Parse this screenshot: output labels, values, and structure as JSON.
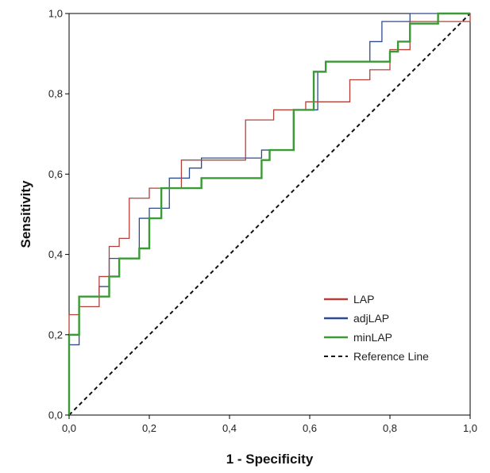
{
  "chart_data": {
    "type": "line",
    "title": "",
    "xlabel": "1 - Specificity",
    "ylabel": "Sensitivity",
    "xlim": [
      0,
      1
    ],
    "ylim": [
      0,
      1
    ],
    "xticks": [
      "0,0",
      "0,2",
      "0,4",
      "0,6",
      "0,8",
      "1,0"
    ],
    "yticks": [
      "0,0",
      "0,2",
      "0,4",
      "0,6",
      "0,8",
      "1,0"
    ],
    "grid": false,
    "legend_position": "bottom-right",
    "series": [
      {
        "name": "LAP",
        "color": "#b5403a",
        "step": true,
        "x": [
          0,
          0,
          0.025,
          0.025,
          0.075,
          0.075,
          0.1,
          0.1,
          0.125,
          0.125,
          0.15,
          0.15,
          0.2,
          0.2,
          0.28,
          0.28,
          0.44,
          0.44,
          0.51,
          0.51,
          0.59,
          0.59,
          0.7,
          0.7,
          0.75,
          0.75,
          0.8,
          0.8,
          0.85,
          0.85,
          1.0,
          1.0
        ],
        "y": [
          0,
          0.25,
          0.25,
          0.27,
          0.27,
          0.345,
          0.345,
          0.42,
          0.42,
          0.44,
          0.44,
          0.54,
          0.54,
          0.565,
          0.565,
          0.635,
          0.635,
          0.735,
          0.735,
          0.76,
          0.76,
          0.78,
          0.78,
          0.835,
          0.835,
          0.86,
          0.86,
          0.91,
          0.91,
          0.98,
          0.98,
          1.0
        ]
      },
      {
        "name": "adjLAP",
        "color": "#2e4a8f",
        "step": true,
        "x": [
          0,
          0,
          0.025,
          0.025,
          0.075,
          0.075,
          0.1,
          0.1,
          0.175,
          0.175,
          0.2,
          0.2,
          0.25,
          0.25,
          0.3,
          0.3,
          0.33,
          0.33,
          0.46,
          0.46,
          0.48,
          0.48,
          0.5,
          0.5,
          0.56,
          0.56,
          0.62,
          0.62,
          0.64,
          0.64,
          0.75,
          0.75,
          0.78,
          0.78,
          0.85,
          0.85,
          1.0
        ],
        "y": [
          0,
          0.175,
          0.175,
          0.295,
          0.295,
          0.32,
          0.32,
          0.39,
          0.39,
          0.49,
          0.49,
          0.515,
          0.515,
          0.59,
          0.59,
          0.615,
          0.615,
          0.64,
          0.64,
          0.64,
          0.64,
          0.66,
          0.66,
          0.66,
          0.66,
          0.76,
          0.76,
          0.855,
          0.855,
          0.88,
          0.88,
          0.93,
          0.93,
          0.98,
          0.98,
          1.0,
          1.0
        ]
      },
      {
        "name": "minLAP",
        "color": "#3a9a35",
        "step": true,
        "x": [
          0,
          0,
          0.025,
          0.025,
          0.1,
          0.1,
          0.125,
          0.125,
          0.175,
          0.175,
          0.2,
          0.2,
          0.23,
          0.23,
          0.33,
          0.33,
          0.48,
          0.48,
          0.5,
          0.5,
          0.56,
          0.56,
          0.61,
          0.61,
          0.64,
          0.64,
          0.8,
          0.8,
          0.82,
          0.82,
          0.85,
          0.85,
          0.92,
          0.92,
          1.0
        ],
        "y": [
          0,
          0.2,
          0.2,
          0.295,
          0.295,
          0.345,
          0.345,
          0.39,
          0.39,
          0.415,
          0.415,
          0.49,
          0.49,
          0.565,
          0.565,
          0.59,
          0.59,
          0.635,
          0.635,
          0.66,
          0.66,
          0.76,
          0.76,
          0.855,
          0.855,
          0.88,
          0.88,
          0.905,
          0.905,
          0.93,
          0.93,
          0.975,
          0.975,
          1.0,
          1.0
        ]
      },
      {
        "name": "Reference Line",
        "color": "#111111",
        "dashed": true,
        "x": [
          0,
          1
        ],
        "y": [
          0,
          1
        ]
      }
    ]
  }
}
